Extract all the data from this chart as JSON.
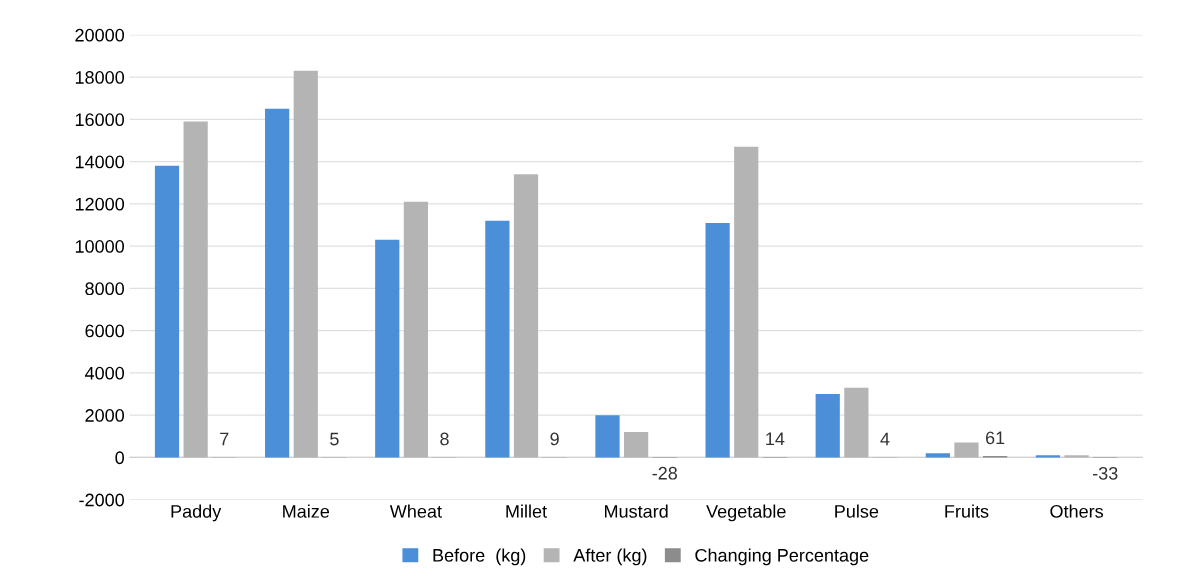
{
  "chart_data": {
    "type": "bar",
    "categories": [
      "Paddy",
      "Maize",
      "Wheat",
      "Millet",
      "Mustard",
      "Vegetable",
      "Pulse",
      "Fruits",
      "Others"
    ],
    "series": [
      {
        "name": "Before  (kg)",
        "color": "#4a8fd8",
        "values": [
          13800,
          16500,
          10300,
          11200,
          2000,
          11100,
          3000,
          200,
          100
        ]
      },
      {
        "name": "After (kg)",
        "color": "#b4b4b4",
        "values": [
          15900,
          18300,
          12100,
          13400,
          1200,
          14700,
          3300,
          700,
          100
        ]
      },
      {
        "name": "Changing Percentage",
        "color": "#8c8c8c",
        "values": [
          7,
          5,
          8,
          9,
          -28,
          14,
          4,
          61,
          -33
        ],
        "value_labels": [
          "7",
          "5",
          "8",
          "9",
          "-28",
          "14",
          "4",
          "61",
          "-33"
        ]
      }
    ],
    "ylim": [
      -2000,
      20000
    ],
    "yticks": [
      -2000,
      0,
      2000,
      4000,
      6000,
      8000,
      10000,
      12000,
      14000,
      16000,
      18000,
      20000
    ],
    "grid": "y",
    "legend": "bottom"
  }
}
